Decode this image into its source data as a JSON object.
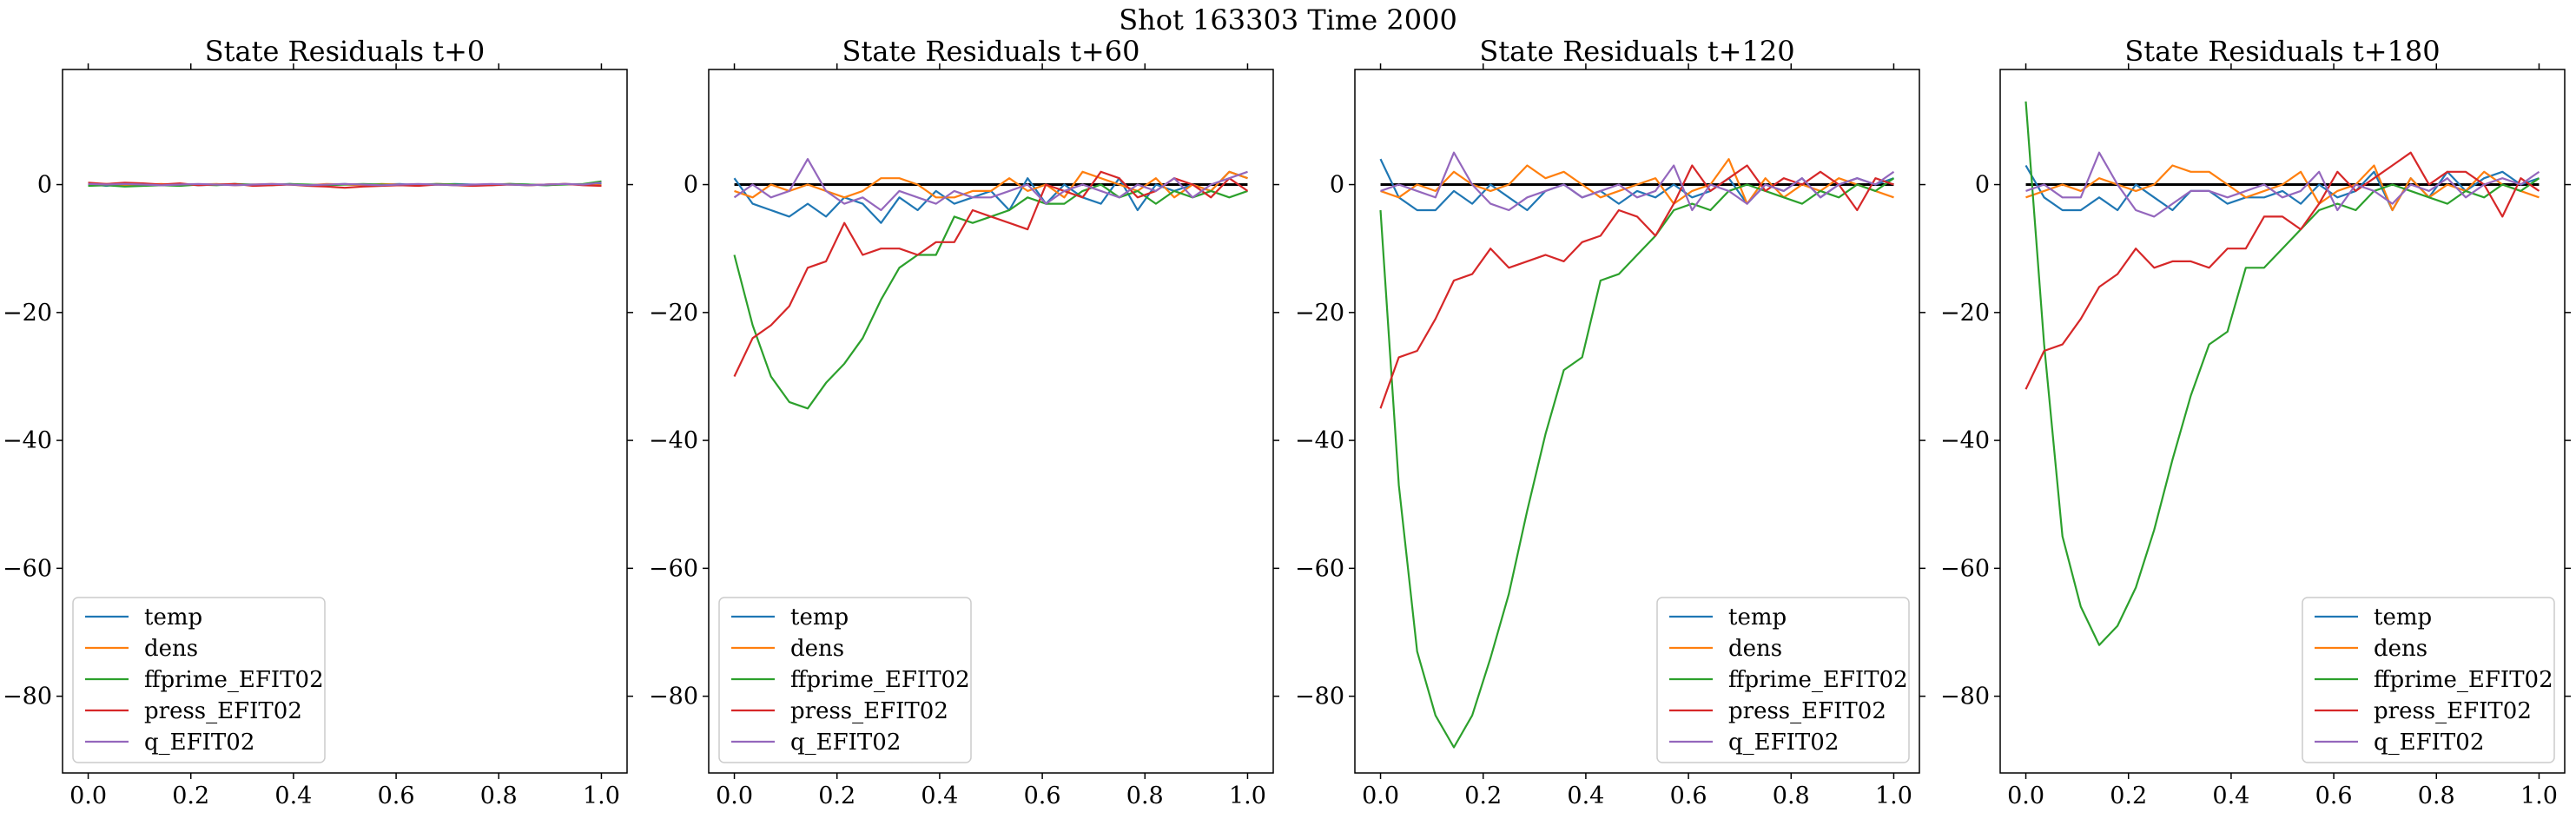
{
  "figure": {
    "suptitle": "Shot 163303   Time 2000"
  },
  "colors": {
    "temp": "#1f77b4",
    "dens": "#ff7f0e",
    "ffprime_EFIT02": "#2ca02c",
    "press_EFIT02": "#d62728",
    "q_EFIT02": "#9467bd",
    "zero_line": "#000000"
  },
  "chart_data": [
    {
      "type": "line",
      "title": "State Residuals t+0",
      "xlabel": "",
      "ylabel": "",
      "xlim": [
        -0.05,
        1.05
      ],
      "ylim": [
        -92,
        18
      ],
      "xticks": [
        "0.0",
        "0.2",
        "0.4",
        "0.6",
        "0.8",
        "1.0"
      ],
      "yticks": [
        "0",
        "−20",
        "−40",
        "−60",
        "−80"
      ],
      "grid": false,
      "legend_position": "lower-left",
      "zero_line": false,
      "x": [
        0,
        0.0357,
        0.0714,
        0.1071,
        0.1429,
        0.1786,
        0.2143,
        0.25,
        0.2857,
        0.3214,
        0.3571,
        0.3929,
        0.4286,
        0.4643,
        0.5,
        0.5357,
        0.5714,
        0.6071,
        0.6429,
        0.6786,
        0.7143,
        0.75,
        0.7857,
        0.8214,
        0.8571,
        0.8929,
        0.9286,
        0.9643,
        1.0
      ],
      "series": [
        {
          "name": "temp",
          "values": [
            0.1,
            -0.2,
            0.1,
            0.0,
            -0.1,
            0.1,
            -0.1,
            0.0,
            0.1,
            -0.1,
            0.0,
            0.1,
            -0.1,
            0.0,
            0.1,
            -0.1,
            0.0,
            0.1,
            -0.1,
            0.0,
            0.1,
            0.0,
            -0.1,
            0.1,
            0.0,
            -0.1,
            0.1,
            0.0,
            0.2
          ]
        },
        {
          "name": "dens",
          "values": [
            0.0,
            0.1,
            -0.1,
            0.0,
            0.1,
            -0.1,
            0.0,
            0.1,
            -0.1,
            0.0,
            0.1,
            0.0,
            -0.1,
            0.1,
            0.0,
            -0.1,
            0.1,
            0.0,
            -0.1,
            0.1,
            0.0,
            -0.1,
            0.0,
            0.1,
            -0.1,
            0.0,
            0.1,
            0.0,
            -0.1
          ]
        },
        {
          "name": "ffprime_EFIT02",
          "values": [
            -0.2,
            -0.1,
            -0.3,
            -0.2,
            -0.1,
            -0.2,
            0.0,
            -0.1,
            0.1,
            0.0,
            -0.1,
            0.1,
            0.0,
            -0.1,
            0.0,
            0.1,
            0.0,
            -0.1,
            0.0,
            0.1,
            0.0,
            -0.1,
            0.0,
            0.1,
            0.0,
            -0.1,
            0.0,
            0.1,
            0.5
          ]
        },
        {
          "name": "press_EFIT02",
          "values": [
            0.3,
            0.1,
            0.3,
            0.2,
            0.0,
            0.2,
            -0.1,
            0.0,
            0.1,
            -0.2,
            -0.1,
            0.0,
            -0.2,
            -0.3,
            -0.5,
            -0.3,
            -0.2,
            -0.1,
            -0.2,
            0.0,
            -0.1,
            -0.2,
            -0.1,
            0.0,
            -0.1,
            0.0,
            0.1,
            -0.1,
            -0.2
          ]
        },
        {
          "name": "q_EFIT02",
          "values": [
            0.1,
            0.0,
            0.1,
            0.0,
            -0.1,
            0.0,
            0.1,
            0.0,
            -0.1,
            0.0,
            0.1,
            0.0,
            -0.1,
            0.0,
            0.1,
            0.0,
            -0.1,
            0.0,
            0.1,
            0.0,
            -0.1,
            0.0,
            0.1,
            0.0,
            -0.1,
            0.0,
            0.1,
            0.0,
            0.3
          ]
        }
      ]
    },
    {
      "type": "line",
      "title": "State Residuals t+60",
      "xlabel": "",
      "ylabel": "",
      "xlim": [
        -0.05,
        1.05
      ],
      "ylim": [
        -92,
        18
      ],
      "xticks": [
        "0.0",
        "0.2",
        "0.4",
        "0.6",
        "0.8",
        "1.0"
      ],
      "yticks": [
        "0",
        "−20",
        "−40",
        "−60",
        "−80"
      ],
      "grid": false,
      "legend_position": "lower-left",
      "zero_line": true,
      "x": [
        0,
        0.0357,
        0.0714,
        0.1071,
        0.1429,
        0.1786,
        0.2143,
        0.25,
        0.2857,
        0.3214,
        0.3571,
        0.3929,
        0.4286,
        0.4643,
        0.5,
        0.5357,
        0.5714,
        0.6071,
        0.6429,
        0.6786,
        0.7143,
        0.75,
        0.7857,
        0.8214,
        0.8571,
        0.8929,
        0.9286,
        0.9643,
        1.0
      ],
      "series": [
        {
          "name": "temp",
          "values": [
            1,
            -3,
            -4,
            -5,
            -3,
            -5,
            -2,
            -3,
            -6,
            -2,
            -4,
            -1,
            -3,
            -2,
            -1,
            -4,
            1,
            -3,
            0,
            -2,
            -3,
            1,
            -4,
            0,
            -1,
            0,
            -1,
            2,
            1
          ]
        },
        {
          "name": "dens",
          "values": [
            -1,
            -2,
            0,
            -1,
            0,
            -1,
            -2,
            -1,
            1,
            1,
            0,
            -2,
            -2,
            -1,
            -1,
            1,
            -1,
            0,
            -2,
            2,
            1,
            0,
            -1,
            1,
            -2,
            0,
            -1,
            2,
            1
          ]
        },
        {
          "name": "ffprime_EFIT02",
          "values": [
            -11,
            -22,
            -30,
            -34,
            -35,
            -31,
            -28,
            -24,
            -18,
            -13,
            -11,
            -11,
            -5,
            -6,
            -5,
            -4,
            -2,
            -3,
            -3,
            -1,
            0,
            -2,
            -1,
            -3,
            -1,
            -2,
            -1,
            -2,
            -1
          ]
        },
        {
          "name": "press_EFIT02",
          "values": [
            -30,
            -24,
            -22,
            -19,
            -13,
            -12,
            -6,
            -11,
            -10,
            -10,
            -11,
            -9,
            -9,
            -4,
            -5,
            -6,
            -7,
            0,
            -1,
            -2,
            2,
            1,
            -2,
            -1,
            1,
            0,
            -2,
            1,
            -1
          ]
        },
        {
          "name": "q_EFIT02",
          "values": [
            -2,
            0,
            -2,
            -1,
            4,
            -1,
            -3,
            -2,
            -4,
            -1,
            -2,
            -3,
            -1,
            -2,
            -2,
            -1,
            0,
            -3,
            -1,
            0,
            -1,
            -2,
            0,
            -1,
            1,
            -2,
            0,
            1,
            2
          ]
        }
      ]
    },
    {
      "type": "line",
      "title": "State Residuals t+120",
      "xlabel": "",
      "ylabel": "",
      "xlim": [
        -0.05,
        1.05
      ],
      "ylim": [
        -92,
        18
      ],
      "xticks": [
        "0.0",
        "0.2",
        "0.4",
        "0.6",
        "0.8",
        "1.0"
      ],
      "yticks": [
        "0",
        "−20",
        "−40",
        "−60",
        "−80"
      ],
      "grid": false,
      "legend_position": "lower-right",
      "zero_line": true,
      "x": [
        0,
        0.0357,
        0.0714,
        0.1071,
        0.1429,
        0.1786,
        0.2143,
        0.25,
        0.2857,
        0.3214,
        0.3571,
        0.3929,
        0.4286,
        0.4643,
        0.5,
        0.5357,
        0.5714,
        0.6071,
        0.6429,
        0.6786,
        0.7143,
        0.75,
        0.7857,
        0.8214,
        0.8571,
        0.8929,
        0.9286,
        0.9643,
        1.0
      ],
      "series": [
        {
          "name": "temp",
          "values": [
            4,
            -2,
            -4,
            -4,
            -1,
            -3,
            0,
            -2,
            -4,
            -1,
            0,
            -2,
            -1,
            -3,
            -1,
            -2,
            0,
            -2,
            -1,
            1,
            -3,
            0,
            -1,
            1,
            -2,
            0,
            1,
            0,
            1
          ]
        },
        {
          "name": "dens",
          "values": [
            -1,
            -2,
            0,
            -1,
            2,
            0,
            -1,
            0,
            3,
            1,
            2,
            0,
            -2,
            -1,
            0,
            1,
            -3,
            -1,
            0,
            4,
            -3,
            1,
            -2,
            0,
            -1,
            1,
            0,
            -1,
            -2
          ]
        },
        {
          "name": "ffprime_EFIT02",
          "values": [
            -4,
            -47,
            -73,
            -83,
            -88,
            -83,
            -74,
            -64,
            -51,
            -39,
            -29,
            -27,
            -15,
            -14,
            -11,
            -8,
            -4,
            -3,
            -4,
            -1,
            0,
            -1,
            -2,
            -3,
            -1,
            -2,
            0,
            -1,
            1
          ]
        },
        {
          "name": "press_EFIT02",
          "values": [
            -35,
            -27,
            -26,
            -21,
            -15,
            -14,
            -10,
            -13,
            -12,
            -11,
            -12,
            -9,
            -8,
            -4,
            -5,
            -8,
            -3,
            3,
            -1,
            1,
            3,
            -1,
            1,
            0,
            2,
            0,
            -4,
            1,
            0
          ]
        },
        {
          "name": "q_EFIT02",
          "values": [
            -1,
            0,
            -1,
            -2,
            5,
            0,
            -3,
            -4,
            -2,
            -1,
            0,
            -2,
            -1,
            0,
            -2,
            -1,
            3,
            -4,
            0,
            -1,
            -3,
            0,
            -1,
            1,
            -2,
            0,
            1,
            0,
            2
          ]
        }
      ]
    },
    {
      "type": "line",
      "title": "State Residuals t+180",
      "xlabel": "",
      "ylabel": "",
      "xlim": [
        -0.05,
        1.05
      ],
      "ylim": [
        -92,
        18
      ],
      "xticks": [
        "0.0",
        "0.2",
        "0.4",
        "0.6",
        "0.8",
        "1.0"
      ],
      "yticks": [
        "0",
        "−20",
        "−40",
        "−60",
        "−80"
      ],
      "grid": false,
      "legend_position": "lower-right",
      "zero_line": true,
      "x": [
        0,
        0.0357,
        0.0714,
        0.1071,
        0.1429,
        0.1786,
        0.2143,
        0.25,
        0.2857,
        0.3214,
        0.3571,
        0.3929,
        0.4286,
        0.4643,
        0.5,
        0.5357,
        0.5714,
        0.6071,
        0.6429,
        0.6786,
        0.7143,
        0.75,
        0.7857,
        0.8214,
        0.8571,
        0.8929,
        0.9286,
        0.9643,
        1.0
      ],
      "series": [
        {
          "name": "temp",
          "values": [
            3,
            -2,
            -4,
            -4,
            -2,
            -4,
            0,
            -2,
            -4,
            -1,
            -1,
            -3,
            -2,
            -2,
            -1,
            -3,
            0,
            -2,
            -1,
            2,
            -4,
            1,
            -2,
            2,
            -1,
            1,
            2,
            0,
            1
          ]
        },
        {
          "name": "dens",
          "values": [
            -2,
            -1,
            0,
            -1,
            1,
            0,
            -1,
            0,
            3,
            2,
            2,
            0,
            -2,
            -1,
            0,
            2,
            -3,
            -1,
            0,
            3,
            -4,
            1,
            -2,
            0,
            -1,
            2,
            0,
            -1,
            -2
          ]
        },
        {
          "name": "ffprime_EFIT02",
          "values": [
            13,
            -25,
            -55,
            -66,
            -72,
            -69,
            -63,
            -54,
            -43,
            -33,
            -25,
            -23,
            -13,
            -13,
            -10,
            -7,
            -4,
            -3,
            -4,
            -1,
            0,
            -1,
            -2,
            -3,
            -1,
            -2,
            0,
            -1,
            1
          ]
        },
        {
          "name": "press_EFIT02",
          "values": [
            -32,
            -26,
            -25,
            -21,
            -16,
            -14,
            -10,
            -13,
            -12,
            -12,
            -13,
            -10,
            -10,
            -5,
            -5,
            -7,
            -3,
            2,
            -1,
            1,
            3,
            5,
            0,
            2,
            2,
            0,
            -5,
            1,
            -1
          ]
        },
        {
          "name": "q_EFIT02",
          "values": [
            -1,
            0,
            -2,
            -2,
            5,
            0,
            -4,
            -5,
            -3,
            -1,
            -1,
            -2,
            -1,
            0,
            -2,
            -1,
            2,
            -4,
            0,
            -1,
            -3,
            0,
            -1,
            1,
            -2,
            0,
            1,
            0,
            2
          ]
        }
      ]
    }
  ]
}
